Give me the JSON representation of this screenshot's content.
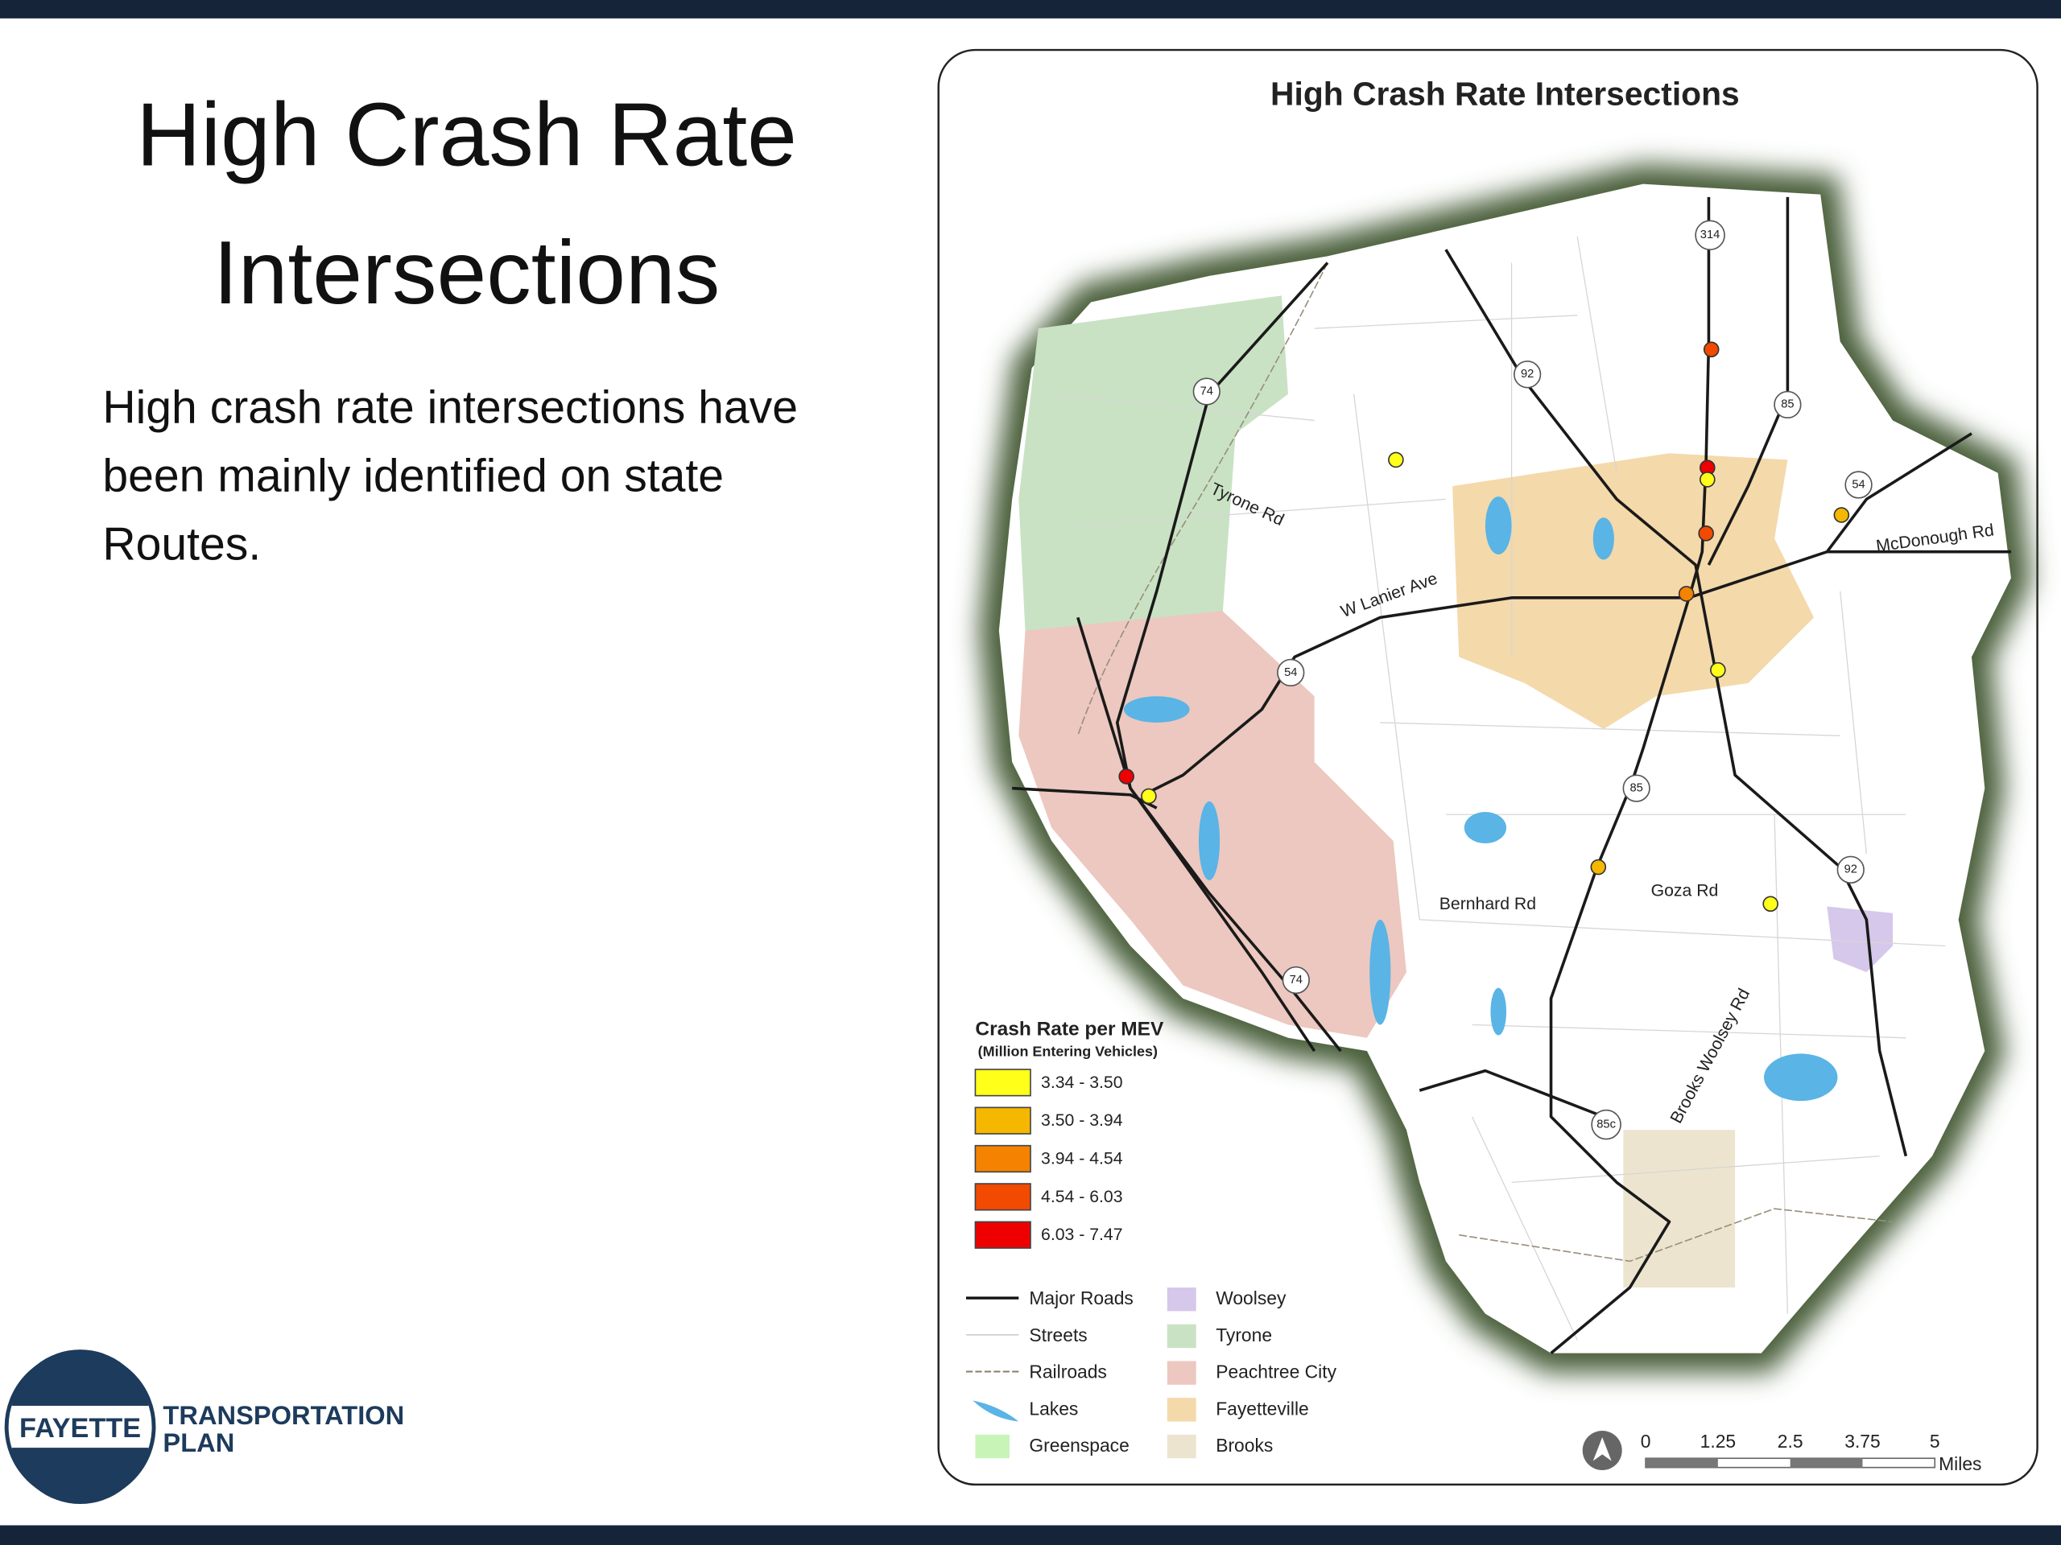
{
  "slide": {
    "title": [
      "High Crash Rate",
      "Intersections"
    ],
    "body": [
      "High crash rate intersections have",
      "been mainly identified on state",
      "Routes."
    ],
    "logo": {
      "circle_text": "FAYETTE",
      "lines": [
        "TRANSPORTATION",
        "PLAN"
      ]
    }
  },
  "map": {
    "title": "High Crash Rate Intersections",
    "road_labels": [
      "Tyrone Rd",
      "W Lanier Ave",
      "McDonough Rd",
      "Bernhard Rd",
      "Goza Rd",
      "Brooks Woolsey Rd"
    ],
    "shields": [
      "314",
      "92",
      "85",
      "74",
      "54",
      "54",
      "85",
      "92",
      "74",
      "85c"
    ],
    "crash_legend": {
      "title": "Crash Rate per MEV",
      "subtitle": "(Million Entering Vehicles)",
      "items": [
        {
          "label": "3.34 - 3.50",
          "color": "#ffff1a"
        },
        {
          "label": "3.50 - 3.94",
          "color": "#f5b700"
        },
        {
          "label": "3.94 - 4.54",
          "color": "#f58200"
        },
        {
          "label": "4.54 - 6.03",
          "color": "#f24a00"
        },
        {
          "label": "6.03 - 7.47",
          "color": "#ee0000"
        }
      ]
    },
    "layer_legend": [
      "Major Roads",
      "Streets",
      "Railroads",
      "Lakes",
      "Greenspace",
      "Woolsey",
      "Tyrone",
      "Peachtree City",
      "Fayetteville",
      "Brooks"
    ],
    "scale_bar": {
      "labels": [
        "0",
        "1.25",
        "2.5",
        "3.75",
        "5"
      ],
      "unit": "Miles"
    }
  }
}
